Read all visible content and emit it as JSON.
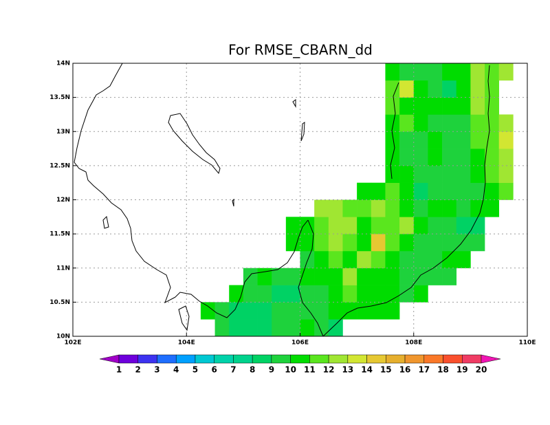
{
  "chart_data": {
    "type": "heatmap",
    "title": "For RMSE_CBARN_dd",
    "xlim": [
      102,
      110
    ],
    "ylim": [
      10,
      14
    ],
    "xticks": [
      {
        "value": 102,
        "label": "102E"
      },
      {
        "value": 104,
        "label": "104E"
      },
      {
        "value": 106,
        "label": "106E"
      },
      {
        "value": 108,
        "label": "108E"
      },
      {
        "value": 110,
        "label": "110E"
      }
    ],
    "yticks": [
      {
        "value": 10,
        "label": "10N"
      },
      {
        "value": 10.5,
        "label": "10.5N"
      },
      {
        "value": 11,
        "label": "11N"
      },
      {
        "value": 11.5,
        "label": "11.5N"
      },
      {
        "value": 12,
        "label": "12N"
      },
      {
        "value": 12.5,
        "label": "12.5N"
      },
      {
        "value": 13,
        "label": "13N"
      },
      {
        "value": 13.5,
        "label": "13.5N"
      },
      {
        "value": 14,
        "label": "14N"
      }
    ],
    "grid": true,
    "x": [
      104.25,
      104.5,
      104.75,
      105,
      105.25,
      105.5,
      105.75,
      106,
      106.25,
      106.5,
      106.75,
      107,
      107.25,
      107.5,
      107.75,
      108,
      108.25,
      108.5,
      108.75,
      109,
      109.25,
      109.5
    ],
    "y": [
      10,
      10.25,
      10.5,
      10.75,
      11,
      11.25,
      11.5,
      11.75,
      12,
      12.25,
      12.5,
      12.75,
      13,
      13.25,
      13.5,
      13.75
    ],
    "values": [
      [
        null,
        9.5,
        8.5,
        8.5,
        8.5,
        9.5,
        9.5,
        10.5,
        9.5,
        8.5,
        null,
        null,
        null,
        null,
        null,
        null,
        null,
        null,
        null,
        null,
        null,
        null
      ],
      [
        10.5,
        9.5,
        8.5,
        8.5,
        8.5,
        9.5,
        9.5,
        9.5,
        9.5,
        10.5,
        10.5,
        10.5,
        10.5,
        10.5,
        null,
        null,
        null,
        null,
        null,
        null,
        null,
        null
      ],
      [
        null,
        null,
        10.5,
        9.5,
        9.5,
        8.5,
        8.5,
        9.5,
        9.5,
        10.5,
        11.5,
        10.5,
        10.5,
        10.5,
        9.5,
        10.5,
        null,
        null,
        null,
        null,
        null,
        null
      ],
      [
        null,
        null,
        null,
        9.5,
        10.5,
        9.5,
        9.5,
        10.5,
        10.5,
        10.5,
        12.5,
        10.5,
        10.5,
        10.5,
        9.5,
        9.5,
        9.5,
        9.5,
        null,
        null,
        null,
        null
      ],
      [
        null,
        null,
        null,
        null,
        null,
        null,
        null,
        9.5,
        10.5,
        11.5,
        10.5,
        12.5,
        11.5,
        10.5,
        9.5,
        9.5,
        9.5,
        10.5,
        10.5,
        null,
        null,
        null
      ],
      [
        null,
        null,
        null,
        null,
        null,
        null,
        10.5,
        10.5,
        11.5,
        12.5,
        11.5,
        10.5,
        14.5,
        11.5,
        10.5,
        9.5,
        9.5,
        9.5,
        9.5,
        9.5,
        null,
        null
      ],
      [
        null,
        null,
        null,
        null,
        null,
        null,
        10.5,
        10.5,
        11.5,
        12.5,
        12.5,
        10.5,
        11.5,
        11.5,
        12.5,
        10.5,
        9.5,
        9.5,
        8.5,
        8.5,
        null,
        null
      ],
      [
        null,
        null,
        null,
        null,
        null,
        null,
        null,
        null,
        12.5,
        12.5,
        11.5,
        11.5,
        12.5,
        11.5,
        10.5,
        9.5,
        10.5,
        10.5,
        9.5,
        10.5,
        10.5,
        null
      ],
      [
        null,
        null,
        null,
        null,
        null,
        null,
        null,
        null,
        null,
        null,
        null,
        10.5,
        10.5,
        11.5,
        10.5,
        8.5,
        9.5,
        9.5,
        9.5,
        9.5,
        10.5,
        11.5
      ],
      [
        null,
        null,
        null,
        null,
        null,
        null,
        null,
        null,
        null,
        null,
        null,
        null,
        null,
        10.5,
        10.5,
        9.5,
        9.5,
        9.5,
        9.5,
        10.5,
        11.5,
        12.5
      ],
      [
        null,
        null,
        null,
        null,
        null,
        null,
        null,
        null,
        null,
        null,
        null,
        null,
        null,
        10.5,
        9.5,
        9.5,
        10.5,
        9.5,
        9.5,
        10.5,
        11.5,
        12.5
      ],
      [
        null,
        null,
        null,
        null,
        null,
        null,
        null,
        null,
        null,
        null,
        null,
        null,
        null,
        10.5,
        9.5,
        9.5,
        10.5,
        9.5,
        9.5,
        11.5,
        11.5,
        13.5
      ],
      [
        null,
        null,
        null,
        null,
        null,
        null,
        null,
        null,
        null,
        null,
        null,
        null,
        null,
        10.5,
        11.5,
        10.5,
        9.5,
        9.5,
        9.5,
        11.5,
        11.5,
        12.5
      ],
      [
        null,
        null,
        null,
        null,
        null,
        null,
        null,
        null,
        null,
        null,
        null,
        null,
        null,
        11.5,
        10.5,
        10.5,
        10.5,
        10.5,
        10.5,
        12.5,
        11.5,
        null
      ],
      [
        null,
        null,
        null,
        null,
        null,
        null,
        null,
        null,
        null,
        null,
        null,
        null,
        null,
        11.5,
        13.5,
        10.5,
        9.5,
        8.5,
        10.5,
        12.5,
        11.5,
        null
      ],
      [
        null,
        null,
        null,
        null,
        null,
        null,
        null,
        null,
        null,
        null,
        null,
        null,
        null,
        10.5,
        9.5,
        9.5,
        9.5,
        10.5,
        10.5,
        12.5,
        11.5,
        12.5
      ]
    ],
    "levels": [
      1,
      2,
      3,
      4,
      5,
      6,
      7,
      8,
      9,
      10,
      11,
      12,
      13,
      14,
      15,
      16,
      17,
      18,
      19,
      20
    ],
    "colors": [
      "#a000c8",
      "#6e00dc",
      "#3c32f0",
      "#1e6eff",
      "#00a0ff",
      "#00c8d2",
      "#00d2aa",
      "#00d28c",
      "#00d264",
      "#1ed23c",
      "#00dc00",
      "#5ae61e",
      "#a0e632",
      "#d2e632",
      "#e6c832",
      "#e6af2d",
      "#f0962d",
      "#fa7828",
      "#fa502d",
      "#f03c64",
      "#f014b4"
    ]
  }
}
